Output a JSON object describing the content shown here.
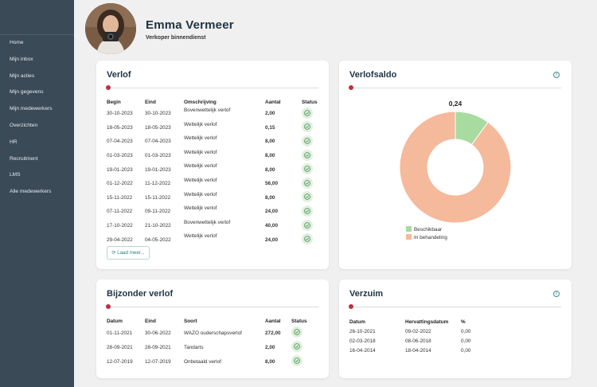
{
  "sidebar": {
    "items": [
      "Home",
      "Mijn inbox",
      "Mijn acties",
      "Mijn gegevens",
      "Mijn medewerkers",
      "Overzichten",
      "HR",
      "Recruitment",
      "LMS",
      "Alle medewerkers"
    ]
  },
  "profile": {
    "name": "Emma Vermeer",
    "role": "Verkoper binnendienst"
  },
  "verlof": {
    "title": "Verlof",
    "headers": {
      "begin": "Begin",
      "eind": "Eind",
      "omschrijving": "Omschrijving",
      "aantal": "Aantal",
      "status": "Status"
    },
    "rows": [
      {
        "begin": "30-10-2023",
        "eind": "30-10-2023",
        "omschrijving": "Bovenwettelijk verlof",
        "aantal": "2,00"
      },
      {
        "begin": "18-05-2023",
        "eind": "18-05-2023",
        "omschrijving": "Wettelijk verlof",
        "aantal": "0,15"
      },
      {
        "begin": "07-04-2023",
        "eind": "07-04-2023",
        "omschrijving": "Wettelijk verlof",
        "aantal": "8,00"
      },
      {
        "begin": "01-03-2023",
        "eind": "01-03-2023",
        "omschrijving": "Wettelijk verlof",
        "aantal": "8,00"
      },
      {
        "begin": "19-01-2023",
        "eind": "19-01-2023",
        "omschrijving": "Wettelijk verlof",
        "aantal": "8,00"
      },
      {
        "begin": "01-12-2022",
        "eind": "11-12-2022",
        "omschrijving": "Wettelijk verlof",
        "aantal": "56,00"
      },
      {
        "begin": "15-11-2022",
        "eind": "15-11-2022",
        "omschrijving": "Wettelijk verlof",
        "aantal": "8,00"
      },
      {
        "begin": "07-11-2022",
        "eind": "09-11-2022",
        "omschrijving": "Wettelijk verlof",
        "aantal": "24,00"
      },
      {
        "begin": "17-10-2022",
        "eind": "21-10-2022",
        "omschrijving": "Bovenwettelijk verlof",
        "aantal": "40,00"
      },
      {
        "begin": "29-04-2022",
        "eind": "04-05-2022",
        "omschrijving": "Wettelijk verlof",
        "aantal": "24,00"
      }
    ],
    "load_more": "Laad meer..."
  },
  "verlofsaldo": {
    "title": "Verlofsaldo",
    "value": "0,24",
    "legend": [
      "Beschikbaar",
      "In behandeling"
    ],
    "colors": {
      "beschikbaar": "#a8dba0",
      "in_behandeling": "#f5b99b"
    }
  },
  "chart_data": {
    "type": "pie",
    "categories": [
      "Beschikbaar",
      "In behandeling"
    ],
    "values": [
      0.1,
      0.9
    ],
    "title": "Verlofsaldo",
    "legend": "bottom-left"
  },
  "bijzonder": {
    "title": "Bijzonder verlof",
    "headers": {
      "datum": "Datum",
      "eind": "Eind",
      "soort": "Soort",
      "aantal": "Aantal",
      "status": "Status"
    },
    "rows": [
      {
        "datum": "01-11-2021",
        "eind": "30-06-2022",
        "soort": "WAZO ouderschapsverlof",
        "aantal": "272,00"
      },
      {
        "datum": "28-09-2021",
        "eind": "28-09-2021",
        "soort": "Tandarts",
        "aantal": "2,00"
      },
      {
        "datum": "12-07-2019",
        "eind": "12-07-2019",
        "soort": "Onbetaald verlof",
        "aantal": "8,00"
      }
    ]
  },
  "verzuim": {
    "title": "Verzuim",
    "headers": {
      "datum": "Datum",
      "hervatting": "Hervattingsdatum",
      "pct": "%"
    },
    "rows": [
      {
        "datum": "26-10-2021",
        "hervatting": "09-02-2022",
        "pct": "0,00"
      },
      {
        "datum": "02-03-2018",
        "hervatting": "08-06-2018",
        "pct": "0,00"
      },
      {
        "datum": "16-04-2014",
        "hervatting": "18-04-2014",
        "pct": "0,00"
      }
    ]
  }
}
